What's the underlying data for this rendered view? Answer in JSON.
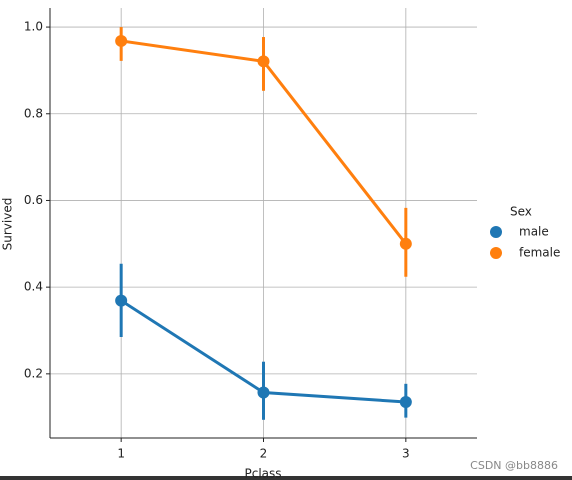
{
  "chart_data": {
    "type": "pointplot",
    "x_label": "Pclass",
    "y_label": "Survived",
    "categories": [
      "1",
      "2",
      "3"
    ],
    "series": [
      {
        "name": "male",
        "color": "#1f77b4",
        "values": [
          0.369,
          0.157,
          0.135
        ],
        "ci_low": [
          0.285,
          0.094,
          0.099
        ],
        "ci_high": [
          0.454,
          0.228,
          0.177
        ]
      },
      {
        "name": "female",
        "color": "#ff7f0e",
        "values": [
          0.968,
          0.921,
          0.5
        ],
        "ci_low": [
          0.922,
          0.853,
          0.424
        ],
        "ci_high": [
          1.0,
          0.977,
          0.583
        ]
      }
    ],
    "legend_title": "Sex",
    "legend_position": "right",
    "xlim": [
      0.5,
      3.5
    ],
    "ylim": [
      0.052,
      1.044
    ],
    "yticks": [
      0.2,
      0.4,
      0.6,
      0.8,
      {
        "value": 1.0,
        "label": "1.0"
      }
    ],
    "grid": true
  },
  "watermark": "CSDN @bb8886"
}
